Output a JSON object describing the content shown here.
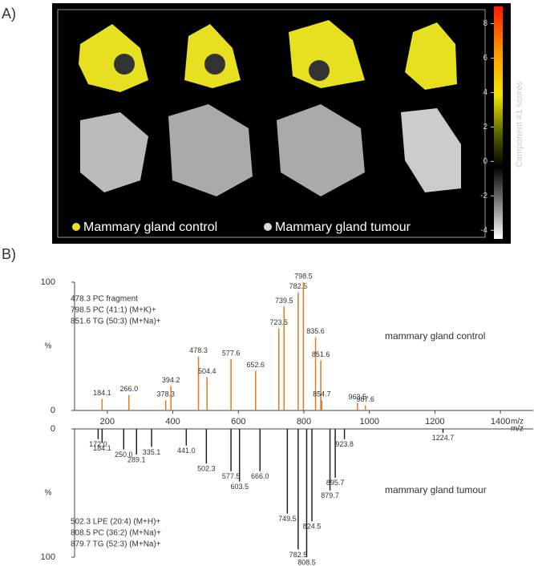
{
  "panel_labels": [
    "A)",
    "B)"
  ],
  "image_panel": {
    "colorbar": {
      "title": "Component #1 scores",
      "lim": [
        -4.5,
        9
      ],
      "ticks": [
        -4,
        -2,
        0,
        2,
        4,
        6,
        8
      ]
    },
    "legend": [
      {
        "name": "Mammary gland control",
        "color": "#e8e030"
      },
      {
        "name": "Mammary gland tumour",
        "color": "#d8d8d8"
      }
    ]
  },
  "chart_data": [
    {
      "type": "bar",
      "series_label": "mammary gland control",
      "color": "#e07b22",
      "x": [
        184.1,
        266.0,
        378.3,
        394.2,
        478.3,
        504.4,
        577.6,
        652.6,
        723.5,
        739.5,
        782.5,
        798.5,
        835.6,
        851.6,
        854.7,
        963.5,
        987.6
      ],
      "x_labels": [
        "184.1",
        "266.0",
        "378.3",
        "394.2",
        "478.3",
        "504.4",
        "577.6",
        "652.6",
        "723.5",
        "739.5",
        "782.5",
        "798.5",
        "835.6",
        "851.6",
        "854.7",
        "963.5",
        "987.6"
      ],
      "values": [
        9,
        12,
        8,
        19,
        42,
        26,
        40,
        31,
        64,
        81,
        92,
        100,
        57,
        39,
        8,
        6,
        4
      ],
      "xlim": [
        100,
        1500
      ],
      "xticks": [
        200,
        400,
        600,
        800,
        1000,
        1200,
        1400
      ],
      "xlabel": "m/z",
      "ylim": [
        0,
        100
      ],
      "yticks": [
        0,
        100
      ],
      "ylabel": "%",
      "inverted": false,
      "annotations": [
        "478.3 PC fragment",
        "798.5 PC (41:1) (M+K)+",
        "851.6 TG (50:3) (M+Na)+"
      ]
    },
    {
      "type": "bar",
      "series_label": "mammary gland tumour",
      "color": "#222222",
      "x": [
        172.0,
        184.1,
        250.0,
        289.1,
        335.1,
        441.0,
        502.3,
        577.5,
        603.5,
        666.0,
        749.5,
        782.5,
        808.5,
        824.5,
        879.7,
        895.7,
        923.8,
        1224.7
      ],
      "x_labels": [
        "172.0",
        "184.1",
        "250.0",
        "289.1",
        "335.1",
        "441.0",
        "502.3",
        "577.5",
        "603.5",
        "666.0",
        "749.5",
        "782.5",
        "808.5",
        "824.5",
        "879.7",
        "895.7",
        "923.8",
        "1224.7"
      ],
      "values": [
        8,
        11,
        16,
        20,
        14,
        13,
        27,
        33,
        41,
        33,
        66,
        94,
        100,
        72,
        48,
        38,
        8,
        3
      ],
      "xlim": [
        100,
        1500
      ],
      "xlabel": "m/z",
      "ylim": [
        0,
        100
      ],
      "yticks": [
        0,
        100
      ],
      "ylabel": "%",
      "inverted": true,
      "annotations": [
        "502.3 LPE (20:4) (M+H)+",
        "808.5 PC (36:2) (M+Na)+",
        "879.7 TG (52:3) (M+Na)+"
      ]
    }
  ]
}
